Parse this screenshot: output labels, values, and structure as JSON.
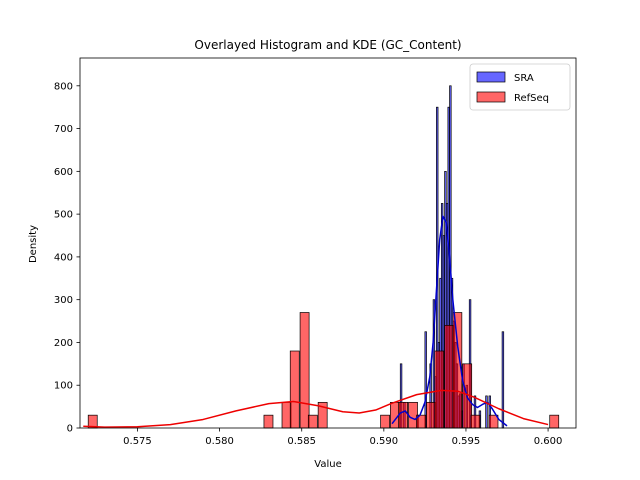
{
  "chart_data": {
    "type": "histogram",
    "title": "Overlayed Histogram and KDE (GC_Content)",
    "xlabel": "Value",
    "ylabel": "Density",
    "xlim": [
      0.5715,
      0.6017
    ],
    "ylim": [
      0,
      865
    ],
    "xticks": [
      0.575,
      0.58,
      0.585,
      0.59,
      0.595,
      0.6
    ],
    "yticks": [
      0,
      100,
      200,
      300,
      400,
      500,
      600,
      700,
      800
    ],
    "legend": "top-right",
    "grid": false,
    "series": [
      {
        "name": "SRA",
        "color": "#0000ff",
        "kde_color": "#0000cc",
        "bin_width": 0.0001,
        "bars": [
          [
            0.591,
            150
          ],
          [
            0.5912,
            60
          ],
          [
            0.592,
            30
          ],
          [
            0.5925,
            225
          ],
          [
            0.5928,
            150
          ],
          [
            0.593,
            300
          ],
          [
            0.5931,
            120
          ],
          [
            0.5932,
            750
          ],
          [
            0.5933,
            200
          ],
          [
            0.5934,
            350
          ],
          [
            0.5935,
            525
          ],
          [
            0.5936,
            450
          ],
          [
            0.5937,
            600
          ],
          [
            0.5938,
            525
          ],
          [
            0.5939,
            750
          ],
          [
            0.594,
            800
          ],
          [
            0.5941,
            350
          ],
          [
            0.5942,
            250
          ],
          [
            0.5943,
            200
          ],
          [
            0.5944,
            150
          ],
          [
            0.5945,
            75
          ],
          [
            0.5946,
            80
          ],
          [
            0.5947,
            40
          ],
          [
            0.5948,
            150
          ],
          [
            0.595,
            100
          ],
          [
            0.5952,
            300
          ],
          [
            0.5955,
            75
          ],
          [
            0.5958,
            40
          ],
          [
            0.5962,
            75
          ],
          [
            0.5964,
            75
          ],
          [
            0.5972,
            225
          ]
        ],
        "kde": [
          [
            0.5905,
            10
          ],
          [
            0.591,
            35
          ],
          [
            0.5913,
            40
          ],
          [
            0.5916,
            25
          ],
          [
            0.5919,
            20
          ],
          [
            0.5922,
            30
          ],
          [
            0.5925,
            60
          ],
          [
            0.5928,
            120
          ],
          [
            0.593,
            200
          ],
          [
            0.5932,
            320
          ],
          [
            0.5934,
            440
          ],
          [
            0.5936,
            495
          ],
          [
            0.5938,
            480
          ],
          [
            0.594,
            400
          ],
          [
            0.5942,
            300
          ],
          [
            0.5945,
            190
          ],
          [
            0.5948,
            110
          ],
          [
            0.5951,
            70
          ],
          [
            0.5954,
            55
          ],
          [
            0.5957,
            48
          ],
          [
            0.596,
            55
          ],
          [
            0.5963,
            60
          ],
          [
            0.5966,
            45
          ],
          [
            0.597,
            20
          ],
          [
            0.5975,
            5
          ]
        ]
      },
      {
        "name": "RefSeq",
        "color": "#ff0000",
        "kde_color": "#ee0000",
        "bin_width": 0.00055,
        "bars": [
          [
            0.572,
            30
          ],
          [
            0.5827,
            30
          ],
          [
            0.5838,
            60
          ],
          [
            0.5843,
            180
          ],
          [
            0.5849,
            270
          ],
          [
            0.5854,
            30
          ],
          [
            0.586,
            60
          ],
          [
            0.5898,
            30
          ],
          [
            0.5904,
            60
          ],
          [
            0.5909,
            60
          ],
          [
            0.5915,
            60
          ],
          [
            0.592,
            30
          ],
          [
            0.5926,
            60
          ],
          [
            0.5931,
            180
          ],
          [
            0.5937,
            240
          ],
          [
            0.5942,
            270
          ],
          [
            0.5948,
            150
          ],
          [
            0.5953,
            30
          ],
          [
            0.5964,
            30
          ],
          [
            0.6001,
            30
          ]
        ],
        "kde": [
          [
            0.5717,
            4
          ],
          [
            0.573,
            2
          ],
          [
            0.575,
            3
          ],
          [
            0.577,
            8
          ],
          [
            0.579,
            20
          ],
          [
            0.581,
            40
          ],
          [
            0.583,
            57
          ],
          [
            0.5845,
            62
          ],
          [
            0.586,
            52
          ],
          [
            0.5875,
            38
          ],
          [
            0.5885,
            35
          ],
          [
            0.5895,
            42
          ],
          [
            0.5905,
            58
          ],
          [
            0.592,
            78
          ],
          [
            0.5935,
            88
          ],
          [
            0.5945,
            86
          ],
          [
            0.5955,
            72
          ],
          [
            0.597,
            45
          ],
          [
            0.5985,
            22
          ],
          [
            0.6,
            8
          ]
        ]
      }
    ]
  }
}
